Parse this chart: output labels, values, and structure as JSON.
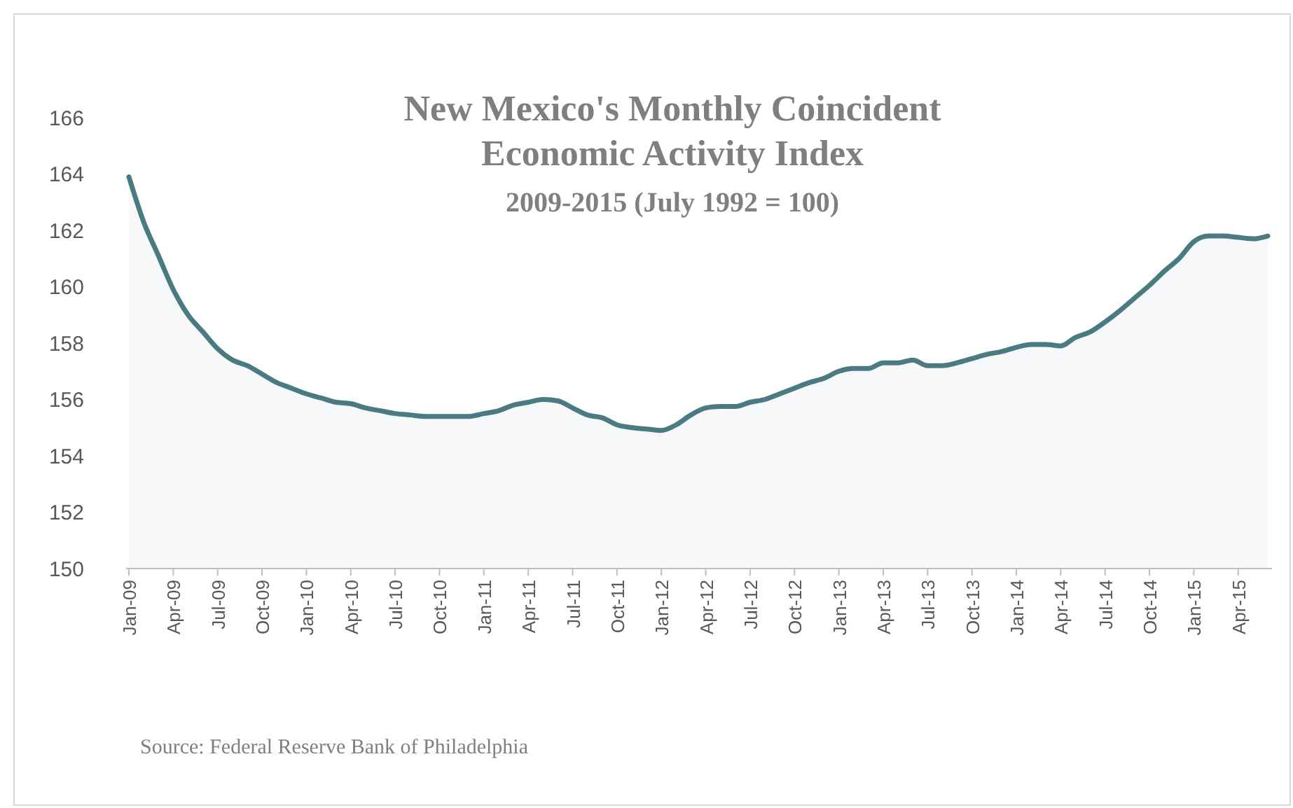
{
  "chart_data": {
    "type": "area",
    "title": "New Mexico's Monthly Coincident Economic Activity Index",
    "subtitle": "2009-2015 (July 1992 = 100)",
    "categories": [
      "Jan-09",
      null,
      null,
      "Apr-09",
      null,
      null,
      "Jul-09",
      null,
      null,
      "Oct-09",
      null,
      null,
      "Jan-10",
      null,
      null,
      "Apr-10",
      null,
      null,
      "Jul-10",
      null,
      null,
      "Oct-10",
      null,
      null,
      "Jan-11",
      null,
      null,
      "Apr-11",
      null,
      null,
      "Jul-11",
      null,
      null,
      "Oct-11",
      null,
      null,
      "Jan-12",
      null,
      null,
      "Apr-12",
      null,
      null,
      "Jul-12",
      null,
      null,
      "Oct-12",
      null,
      null,
      "Jan-13",
      null,
      null,
      "Apr-13",
      null,
      null,
      "Jul-13",
      null,
      null,
      "Oct-13",
      null,
      null,
      "Jan-14",
      null,
      null,
      "Apr-14",
      null,
      null,
      "Jul-14",
      null,
      null,
      "Oct-14",
      null,
      null,
      "Jan-15",
      null,
      null,
      "Apr-15",
      null,
      null
    ],
    "series": [
      {
        "color": "#4a7b83",
        "values": [
          163.9,
          162.3,
          161.1,
          159.9,
          159.0,
          158.4,
          157.8,
          157.4,
          157.2,
          156.9,
          156.6,
          156.4,
          156.2,
          156.05,
          155.9,
          155.85,
          155.7,
          155.6,
          155.5,
          155.45,
          155.4,
          155.4,
          155.4,
          155.4,
          155.5,
          155.6,
          155.8,
          155.9,
          156.0,
          155.95,
          155.7,
          155.45,
          155.35,
          155.1,
          155.0,
          154.95,
          154.9,
          155.1,
          155.45,
          155.7,
          155.75,
          155.75,
          155.9,
          156.0,
          156.2,
          156.4,
          156.6,
          156.75,
          157.0,
          157.1,
          157.1,
          157.3,
          157.3,
          157.4,
          157.2,
          157.2,
          157.3,
          157.45,
          157.6,
          157.7,
          157.85,
          157.95,
          157.95,
          157.9,
          158.2,
          158.4,
          158.75,
          159.15,
          159.6,
          160.05,
          160.55,
          161.0,
          161.6,
          161.8,
          161.8,
          161.75,
          161.7,
          161.8
        ]
      }
    ],
    "ylim": [
      150,
      166
    ],
    "yticks": [
      150,
      152,
      154,
      156,
      158,
      160,
      162,
      164,
      166
    ],
    "grid": false,
    "annotations": [
      "Source: Federal Reserve Bank of Philadelphia"
    ]
  }
}
